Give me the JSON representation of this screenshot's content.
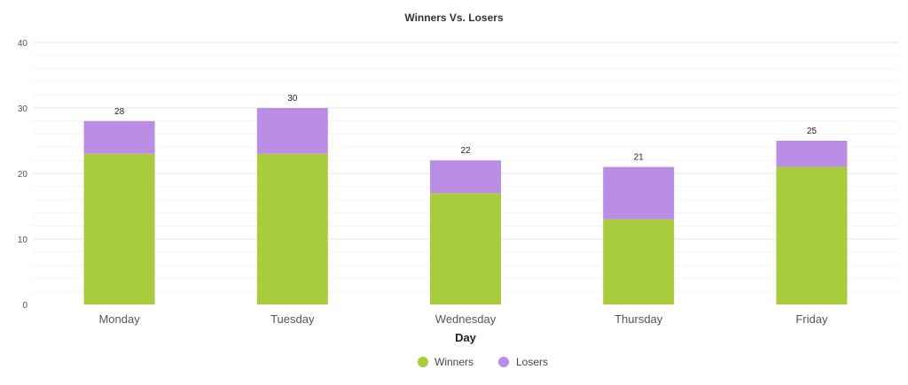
{
  "chart_data": {
    "type": "bar",
    "stacked": true,
    "title": "Winners Vs. Losers",
    "xlabel": "Day",
    "ylabel": "",
    "categories": [
      "Monday",
      "Tuesday",
      "Wednesday",
      "Thursday",
      "Friday"
    ],
    "series": [
      {
        "name": "Winners",
        "values": [
          23,
          23,
          17,
          13,
          21
        ],
        "color": "#a8cc3c"
      },
      {
        "name": "Losers",
        "values": [
          5,
          7,
          5,
          8,
          4
        ],
        "color": "#bb8ee6"
      }
    ],
    "totals": [
      28,
      30,
      22,
      21,
      25
    ],
    "ylim": [
      0,
      40
    ],
    "yticks": [
      0,
      10,
      20,
      30,
      40
    ],
    "grid": true,
    "legend_position": "bottom-center"
  }
}
